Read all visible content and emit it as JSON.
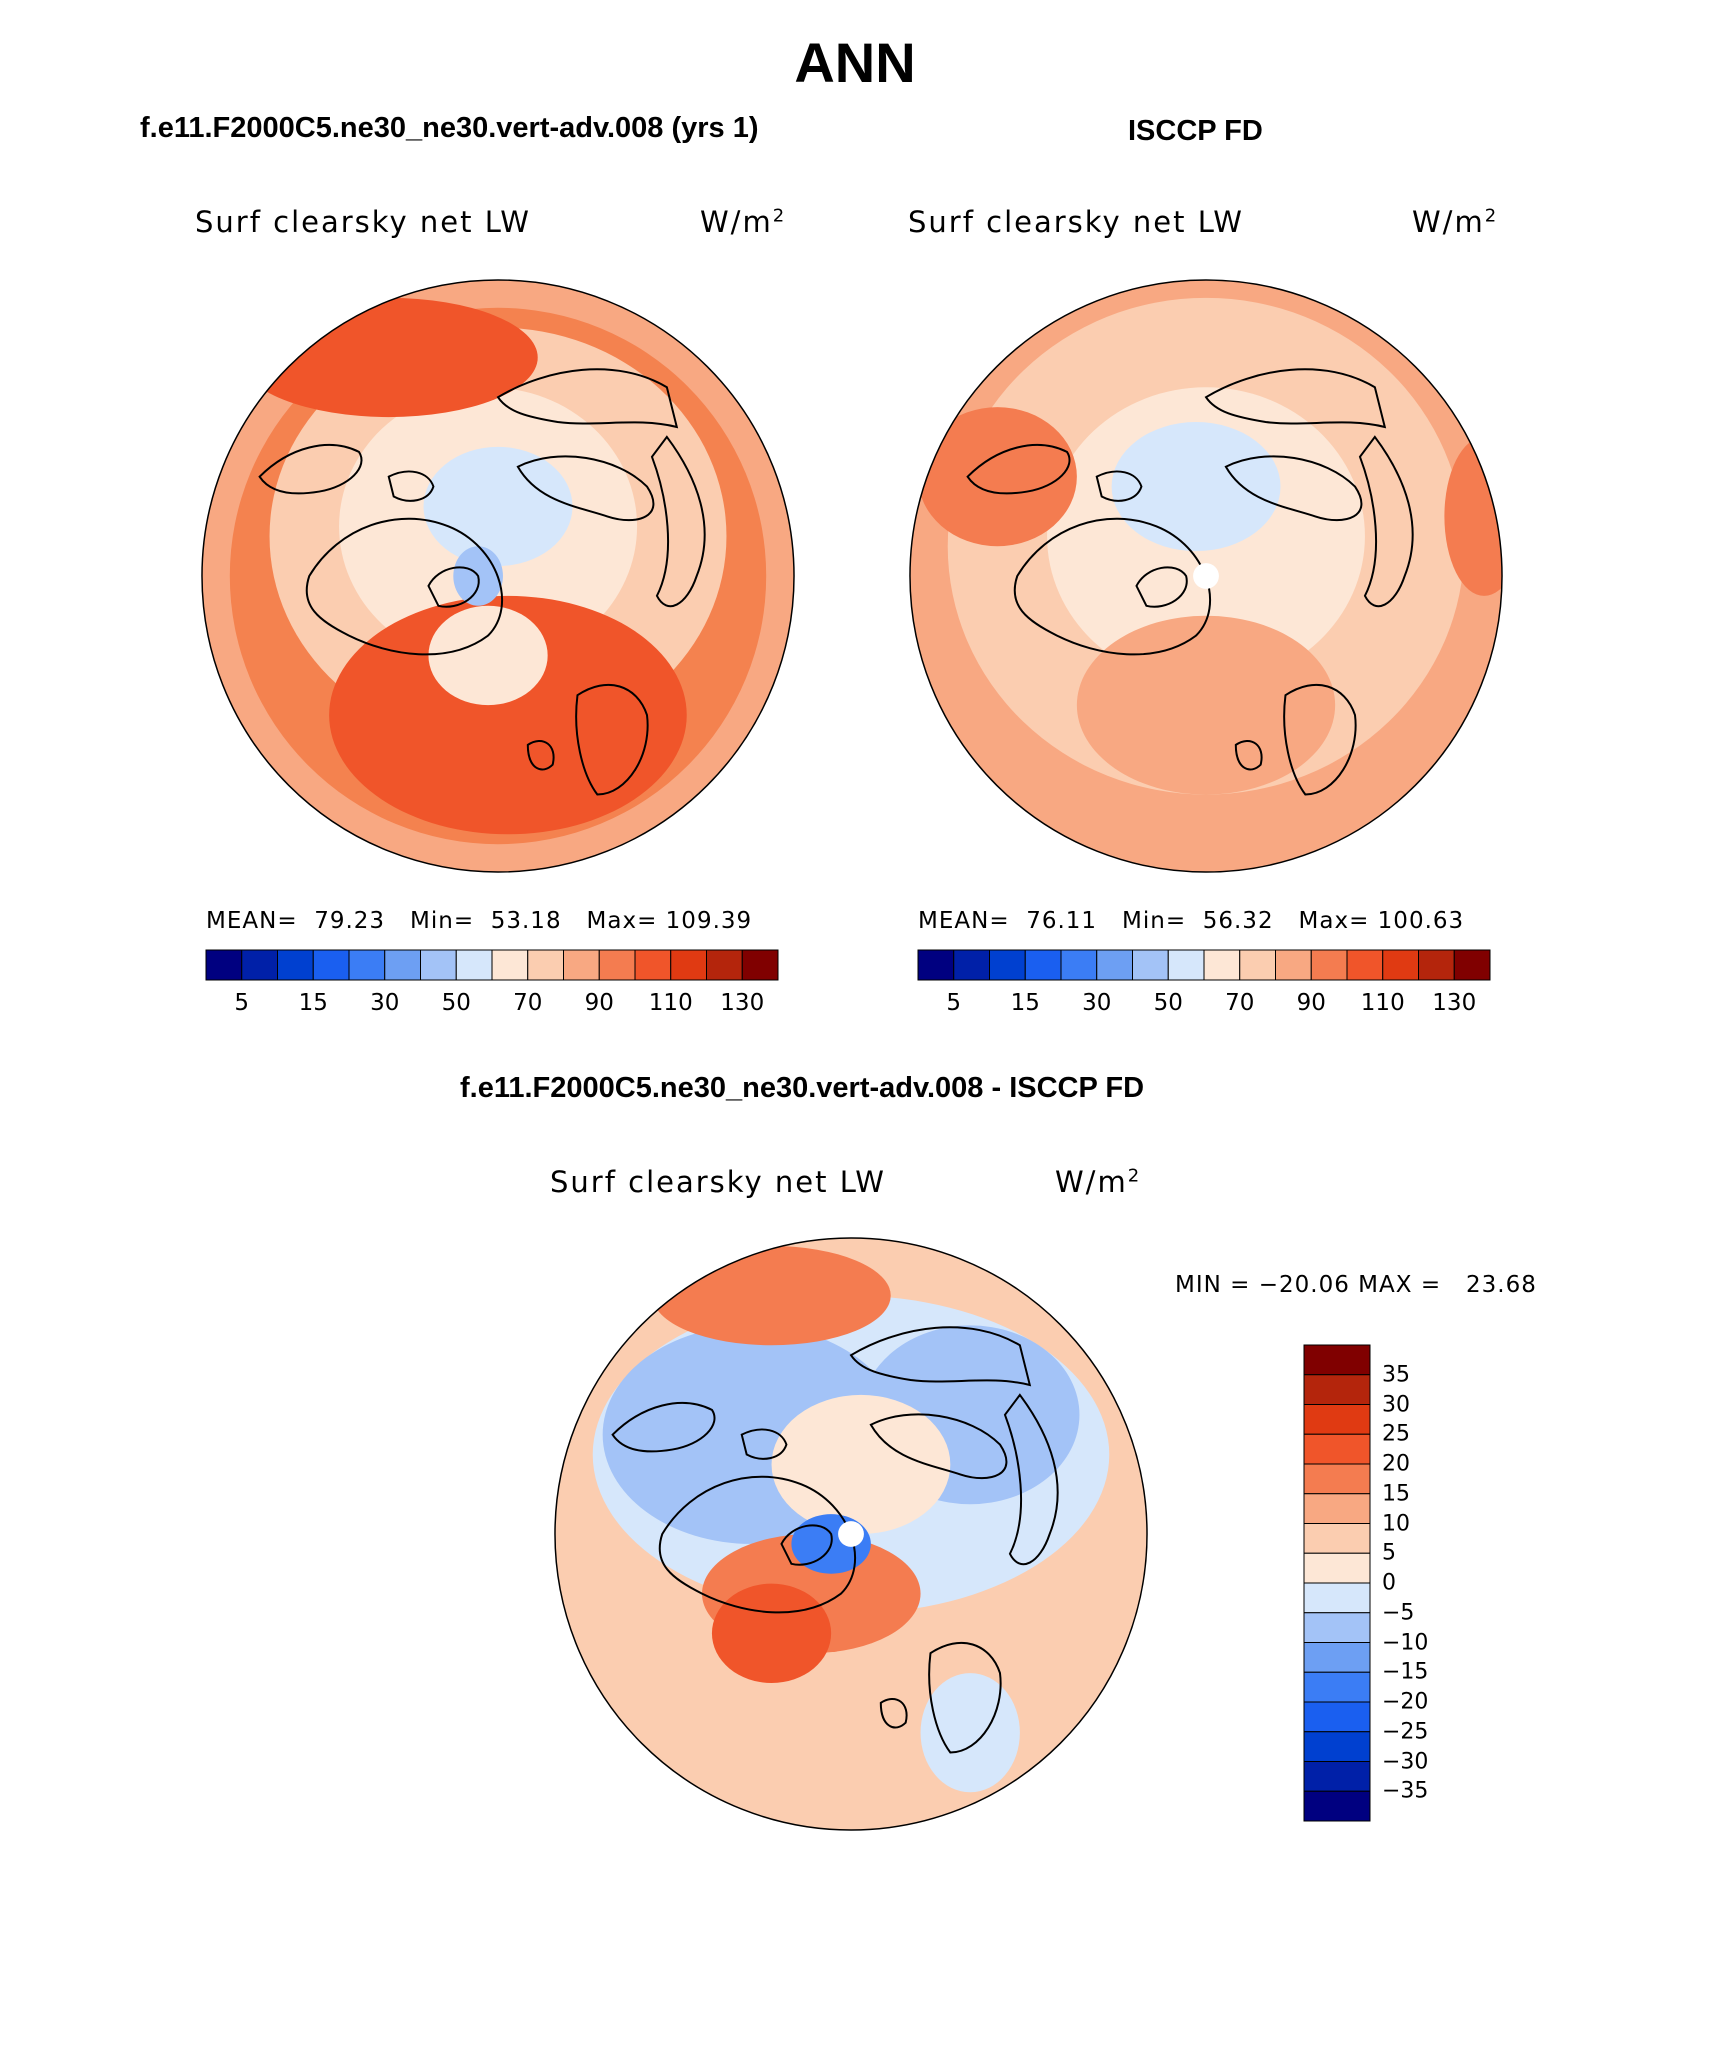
{
  "figure": {
    "season": "ANN",
    "difference_title": "f.e11.F2000C5.ne30_ne30.vert-adv.008 - ISCCP FD"
  },
  "panels": [
    {
      "case_title": "f.e11.F2000C5.ne30_ne30.vert-adv.008 (yrs 1)",
      "variable": "Surf clearsky net LW",
      "units_base": "W/m",
      "units_exp": "2",
      "stats": {
        "mean_label": "MEAN=",
        "mean": "79.23",
        "min_label": "Min=",
        "min": "53.18",
        "max_label": "Max=",
        "max": "109.39"
      }
    },
    {
      "case_title": "ISCCP FD",
      "variable": "Surf clearsky net LW",
      "units_base": "W/m",
      "units_exp": "2",
      "stats": {
        "mean_label": "MEAN=",
        "mean": "76.11",
        "min_label": "Min=",
        "min": "56.32",
        "max_label": "Max=",
        "max": "100.63"
      }
    },
    {
      "variable": "Surf clearsky net LW",
      "units_base": "W/m",
      "units_exp": "2",
      "stats": {
        "min_label": "MIN =",
        "min": "−20.06",
        "max_label": "MAX =",
        "max": "23.68"
      }
    }
  ],
  "colorbar_main": {
    "colors": [
      "#000080",
      "#0020a8",
      "#0040d0",
      "#1a5ff0",
      "#3b7df5",
      "#6d9ff3",
      "#a3c3f7",
      "#d6e7fb",
      "#fde7d6",
      "#fbcdb0",
      "#f8a882",
      "#f47c50",
      "#f0552a",
      "#e03a12",
      "#b4250c",
      "#800000"
    ],
    "labels": [
      "5",
      "15",
      "30",
      "50",
      "70",
      "90",
      "110",
      "130"
    ]
  },
  "colorbar_diff": {
    "colors": [
      "#800000",
      "#b4250c",
      "#e03a12",
      "#f0552a",
      "#f47c50",
      "#f8a882",
      "#fbcdb0",
      "#fde7d6",
      "#d6e7fb",
      "#a3c3f7",
      "#6d9ff3",
      "#3b7df5",
      "#1a5ff0",
      "#0040d0",
      "#0020a8",
      "#000080"
    ],
    "labels": [
      "35",
      "30",
      "25",
      "20",
      "15",
      "10",
      "5",
      "0",
      "−5",
      "−10",
      "−15",
      "−20",
      "−25",
      "−30",
      "−35"
    ]
  },
  "chart_data": [
    {
      "type": "heatmap",
      "title": "Surf clearsky net LW",
      "subtitle": "f.e11.F2000C5.ne30_ne30.vert-adv.008 (yrs 1)",
      "units": "W/m2",
      "projection": "north polar stereographic",
      "mean": 79.23,
      "min": 53.18,
      "max": 109.39,
      "contour_levels": [
        5,
        10,
        15,
        20,
        30,
        40,
        50,
        60,
        70,
        80,
        90,
        100,
        110,
        120,
        130
      ]
    },
    {
      "type": "heatmap",
      "title": "Surf clearsky net LW",
      "subtitle": "ISCCP FD",
      "units": "W/m2",
      "projection": "north polar stereographic",
      "mean": 76.11,
      "min": 56.32,
      "max": 100.63,
      "contour_levels": [
        5,
        10,
        15,
        20,
        30,
        40,
        50,
        60,
        70,
        80,
        90,
        100,
        110,
        120,
        130
      ]
    },
    {
      "type": "heatmap",
      "title": "Surf clearsky net LW",
      "subtitle": "f.e11.F2000C5.ne30_ne30.vert-adv.008 - ISCCP FD",
      "units": "W/m2",
      "projection": "north polar stereographic",
      "min": -20.06,
      "max": 23.68,
      "contour_levels": [
        -35,
        -30,
        -25,
        -20,
        -15,
        -10,
        -5,
        0,
        5,
        10,
        15,
        20,
        25,
        30,
        35
      ]
    }
  ]
}
